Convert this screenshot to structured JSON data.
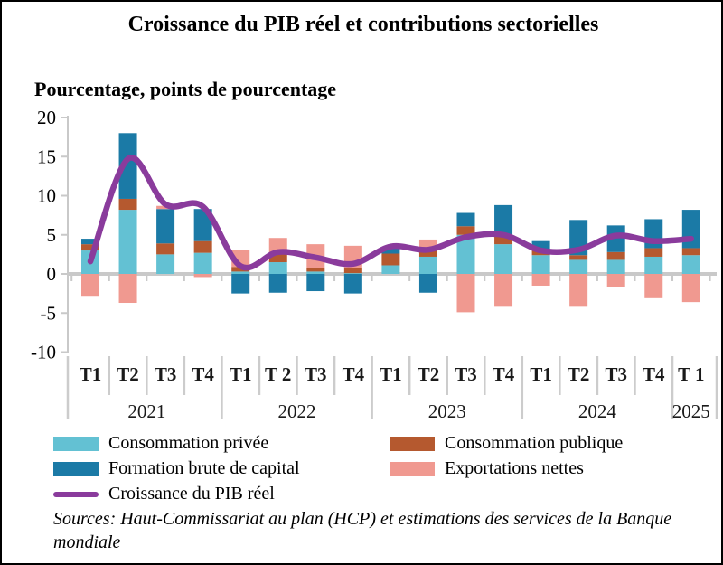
{
  "title": "Croissance du PIB réel et contributions sectorielles",
  "subtitle": "Pourcentage, points de pourcentage",
  "source_note": "Sources: Haut-Commissariat au plan (HCP) et estimations des services de la Banque mondiale",
  "legend": {
    "items": [
      {
        "label": "Consommation privée",
        "color": "#63C1D3",
        "shape": "rect"
      },
      {
        "label": "Consommation publique",
        "color": "#B5592F",
        "shape": "rect"
      },
      {
        "label": "Formation brute de capital",
        "color": "#1B7AA6",
        "shape": "rect"
      },
      {
        "label": "Exportations nettes",
        "color": "#F09990",
        "shape": "rect"
      },
      {
        "label": "Croissance du PIB réel",
        "color": "#8A3B9C",
        "shape": "line"
      }
    ]
  },
  "chart_data": {
    "type": "bar",
    "subtype": "stacked-bars-with-line",
    "title": "Croissance du PIB réel et contributions sectorielles",
    "ylabel": "Pourcentage, points de pourcentage",
    "ylim": [
      -10,
      20
    ],
    "yticks": [
      -10,
      -5,
      0,
      5,
      10,
      15,
      20
    ],
    "grid": "zero-line-only",
    "legend_position": "bottom",
    "axis_color": "#C9C9C9",
    "categories": [
      "T1",
      "T2",
      "T3",
      "T4",
      "T1",
      "T 2",
      "T3",
      "T4",
      "T1",
      "T2",
      "T3",
      "T4",
      "T1",
      "T2",
      "T3",
      "T4",
      "T 1"
    ],
    "years": [
      {
        "label": "2021",
        "quarters": 4
      },
      {
        "label": "2022",
        "quarters": 4
      },
      {
        "label": "2023",
        "quarters": 4
      },
      {
        "label": "2024",
        "quarters": 4
      },
      {
        "label": "2025",
        "quarters": 1
      }
    ],
    "series": [
      {
        "name": "Consommation privée",
        "color": "#63C1D3",
        "values": [
          3.0,
          8.2,
          2.5,
          2.7,
          0.3,
          1.5,
          0.3,
          0.1,
          1.1,
          2.2,
          5.0,
          3.8,
          2.4,
          1.8,
          1.8,
          2.2,
          2.4
        ]
      },
      {
        "name": "Consommation publique",
        "color": "#B5592F",
        "values": [
          0.8,
          1.4,
          1.4,
          1.5,
          0.6,
          1.0,
          0.5,
          0.6,
          1.5,
          1.0,
          1.1,
          1.2,
          0.8,
          0.6,
          1.0,
          1.1,
          0.9
        ]
      },
      {
        "name": "Formation brute de capital",
        "color": "#1B7AA6",
        "values": [
          0.7,
          8.4,
          4.4,
          4.1,
          -2.5,
          -2.4,
          -2.2,
          -2.5,
          0.8,
          -2.4,
          1.7,
          3.8,
          1.0,
          4.5,
          3.4,
          3.7,
          4.9
        ]
      },
      {
        "name": "Exportations nettes",
        "color": "#F09990",
        "values": [
          -2.8,
          -3.7,
          0.4,
          -0.4,
          2.2,
          2.1,
          3.0,
          2.9,
          0.0,
          1.2,
          -4.9,
          -4.2,
          -1.5,
          -4.2,
          -1.7,
          -3.1,
          -3.6
        ]
      }
    ],
    "line_series": {
      "name": "Croissance du PIB réel",
      "color": "#8A3B9C",
      "values": [
        1.6,
        14.7,
        8.9,
        8.6,
        1.0,
        2.8,
        2.1,
        1.3,
        3.5,
        3.1,
        4.7,
        5.0,
        3.0,
        3.1,
        4.9,
        4.2,
        4.5
      ]
    }
  }
}
